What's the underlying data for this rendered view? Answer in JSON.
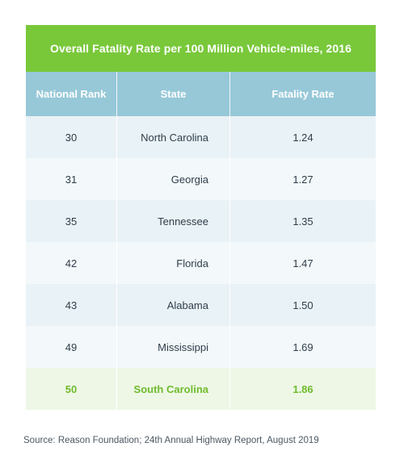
{
  "chart_data": {
    "type": "table",
    "title": "Overall Fatality Rate per 100 Million Vehicle-miles, 2016",
    "columns": [
      "National Rank",
      "State",
      "Fatality Rate"
    ],
    "rows": [
      {
        "rank": "30",
        "state": "North Carolina",
        "rate": "1.24",
        "highlight": false
      },
      {
        "rank": "31",
        "state": "Georgia",
        "rate": "1.27",
        "highlight": false
      },
      {
        "rank": "35",
        "state": "Tennessee",
        "rate": "1.35",
        "highlight": false
      },
      {
        "rank": "42",
        "state": "Florida",
        "rate": "1.47",
        "highlight": false
      },
      {
        "rank": "43",
        "state": "Alabama",
        "rate": "1.50",
        "highlight": false
      },
      {
        "rank": "49",
        "state": "Mississippi",
        "rate": "1.69",
        "highlight": false
      },
      {
        "rank": "50",
        "state": "South Carolina",
        "rate": "1.86",
        "highlight": true
      }
    ],
    "source": "Source: Reason Foundation; 24th Annual Highway Report, August 2019"
  },
  "colors": {
    "title_bg": "#79c83a",
    "header_bg": "#97c8d8",
    "row_odd": "#e9f2f6",
    "row_even": "#f3f8fa",
    "highlight_row_bg": "#eef7e6",
    "highlight_text": "#6fbb2d"
  }
}
